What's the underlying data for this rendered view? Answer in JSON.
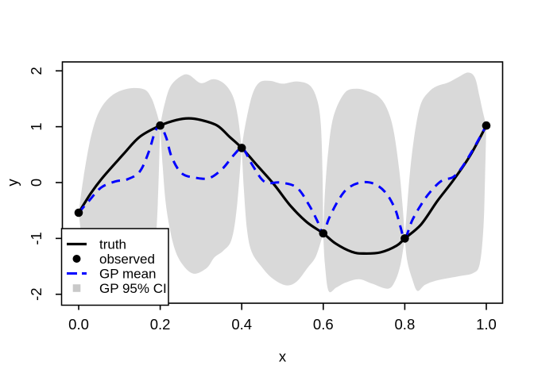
{
  "chart_data": {
    "type": "line",
    "title": "",
    "xlabel": "x",
    "ylabel": "y",
    "xlim": [
      -0.04,
      1.04
    ],
    "ylim": [
      -2.16,
      2.16
    ],
    "x_ticks": [
      0.0,
      0.2,
      0.4,
      0.6,
      0.8,
      1.0
    ],
    "x_tick_labels": [
      "0.0",
      "0.2",
      "0.4",
      "0.6",
      "0.8",
      "1.0"
    ],
    "y_ticks": [
      -2,
      -1,
      0,
      1,
      2
    ],
    "y_tick_labels": [
      "-2",
      "-1",
      "0",
      "1",
      "2"
    ],
    "grid": false,
    "legend_position": "bottomleft",
    "colors": {
      "truth": "#000000",
      "observed": "#000000",
      "gp_mean": "#0000FF",
      "ci_band": "#D9D9D9",
      "legend_square": "#C9C9C9",
      "axis": "#000000",
      "legend_bg": "#FFFFFF",
      "background": "#FFFFFF"
    },
    "observed": {
      "x": [
        0.0,
        0.2,
        0.4,
        0.6,
        0.8,
        1.0
      ],
      "y": [
        -0.54,
        1.02,
        0.62,
        -0.91,
        -1.0,
        1.02
      ]
    },
    "series": [
      {
        "name": "truth",
        "style": "solid",
        "points": [
          [
            0.0,
            -0.54
          ],
          [
            0.03,
            -0.19
          ],
          [
            0.06,
            0.1
          ],
          [
            0.11,
            0.51
          ],
          [
            0.15,
            0.82
          ],
          [
            0.2,
            1.02
          ],
          [
            0.24,
            1.12
          ],
          [
            0.27,
            1.15
          ],
          [
            0.3,
            1.12
          ],
          [
            0.34,
            1.02
          ],
          [
            0.37,
            0.82
          ],
          [
            0.4,
            0.62
          ],
          [
            0.44,
            0.29
          ],
          [
            0.48,
            -0.04
          ],
          [
            0.52,
            -0.42
          ],
          [
            0.56,
            -0.71
          ],
          [
            0.6,
            -0.91
          ],
          [
            0.63,
            -1.09
          ],
          [
            0.67,
            -1.24
          ],
          [
            0.7,
            -1.27
          ],
          [
            0.74,
            -1.25
          ],
          [
            0.78,
            -1.13
          ],
          [
            0.8,
            -1.0
          ],
          [
            0.84,
            -0.75
          ],
          [
            0.88,
            -0.33
          ],
          [
            0.92,
            0.05
          ],
          [
            0.96,
            0.48
          ],
          [
            1.0,
            1.02
          ]
        ]
      },
      {
        "name": "GP mean",
        "style": "dashed",
        "points": [
          [
            0.0,
            -0.54
          ],
          [
            0.025,
            -0.33
          ],
          [
            0.055,
            -0.09
          ],
          [
            0.09,
            0.02
          ],
          [
            0.12,
            0.06
          ],
          [
            0.15,
            0.2
          ],
          [
            0.172,
            0.55
          ],
          [
            0.187,
            0.9
          ],
          [
            0.2,
            1.02
          ],
          [
            0.215,
            0.8
          ],
          [
            0.228,
            0.46
          ],
          [
            0.252,
            0.17
          ],
          [
            0.284,
            0.09
          ],
          [
            0.32,
            0.08
          ],
          [
            0.353,
            0.25
          ],
          [
            0.379,
            0.48
          ],
          [
            0.4,
            0.62
          ],
          [
            0.414,
            0.48
          ],
          [
            0.428,
            0.29
          ],
          [
            0.457,
            0.01
          ],
          [
            0.496,
            0.0
          ],
          [
            0.535,
            -0.09
          ],
          [
            0.565,
            -0.4
          ],
          [
            0.585,
            -0.68
          ],
          [
            0.6,
            -0.91
          ],
          [
            0.613,
            -0.66
          ],
          [
            0.636,
            -0.33
          ],
          [
            0.659,
            -0.11
          ],
          [
            0.691,
            0.0
          ],
          [
            0.724,
            -0.02
          ],
          [
            0.753,
            -0.18
          ],
          [
            0.776,
            -0.47
          ],
          [
            0.789,
            -0.78
          ],
          [
            0.8,
            -1.0
          ],
          [
            0.818,
            -0.68
          ],
          [
            0.838,
            -0.42
          ],
          [
            0.861,
            -0.18
          ],
          [
            0.89,
            0.03
          ],
          [
            0.919,
            0.1
          ],
          [
            0.942,
            0.29
          ],
          [
            0.968,
            0.6
          ],
          [
            1.0,
            1.02
          ]
        ]
      }
    ],
    "ci_blobs": [
      {
        "upper": [
          [
            0.0,
            -0.54
          ],
          [
            0.012,
            0.1
          ],
          [
            0.03,
            0.82
          ],
          [
            0.05,
            1.27
          ],
          [
            0.08,
            1.55
          ],
          [
            0.12,
            1.68
          ],
          [
            0.16,
            1.67
          ],
          [
            0.178,
            1.52
          ],
          [
            0.19,
            1.28
          ],
          [
            0.2,
            1.02
          ]
        ],
        "lower": [
          [
            0.0,
            -0.54
          ],
          [
            0.012,
            -1.2
          ],
          [
            0.03,
            -1.62
          ],
          [
            0.06,
            -1.87
          ],
          [
            0.1,
            -1.96
          ],
          [
            0.14,
            -1.97
          ],
          [
            0.168,
            -1.83
          ],
          [
            0.185,
            -1.35
          ],
          [
            0.194,
            -0.4
          ],
          [
            0.2,
            1.02
          ]
        ]
      },
      {
        "upper": [
          [
            0.2,
            1.02
          ],
          [
            0.21,
            1.38
          ],
          [
            0.225,
            1.72
          ],
          [
            0.25,
            1.9
          ],
          [
            0.27,
            1.93
          ],
          [
            0.3,
            1.78
          ],
          [
            0.33,
            1.85
          ],
          [
            0.357,
            1.77
          ],
          [
            0.378,
            1.55
          ],
          [
            0.39,
            1.2
          ],
          [
            0.4,
            0.62
          ]
        ],
        "lower": [
          [
            0.2,
            1.02
          ],
          [
            0.206,
            0.3
          ],
          [
            0.215,
            -0.45
          ],
          [
            0.232,
            -1.1
          ],
          [
            0.252,
            -1.44
          ],
          [
            0.281,
            -1.63
          ],
          [
            0.314,
            -1.53
          ],
          [
            0.333,
            -1.34
          ],
          [
            0.355,
            -1.22
          ],
          [
            0.375,
            -1.02
          ],
          [
            0.388,
            -0.45
          ],
          [
            0.4,
            0.62
          ]
        ]
      },
      {
        "upper": [
          [
            0.4,
            0.62
          ],
          [
            0.408,
            1.0
          ],
          [
            0.425,
            1.55
          ],
          [
            0.443,
            1.79
          ],
          [
            0.47,
            1.82
          ],
          [
            0.5,
            1.77
          ],
          [
            0.535,
            1.81
          ],
          [
            0.567,
            1.74
          ],
          [
            0.585,
            1.48
          ],
          [
            0.594,
            1.05
          ],
          [
            0.598,
            0.2
          ],
          [
            0.6,
            -0.91
          ]
        ],
        "lower": [
          [
            0.4,
            0.62
          ],
          [
            0.405,
            -0.1
          ],
          [
            0.413,
            -0.85
          ],
          [
            0.425,
            -1.25
          ],
          [
            0.45,
            -1.52
          ],
          [
            0.476,
            -1.72
          ],
          [
            0.509,
            -1.84
          ],
          [
            0.535,
            -1.77
          ],
          [
            0.561,
            -1.53
          ],
          [
            0.582,
            -1.32
          ],
          [
            0.6,
            -0.91
          ]
        ]
      },
      {
        "upper": [
          [
            0.6,
            -0.91
          ],
          [
            0.604,
            -0.2
          ],
          [
            0.612,
            0.55
          ],
          [
            0.625,
            1.18
          ],
          [
            0.652,
            1.6
          ],
          [
            0.681,
            1.68
          ],
          [
            0.711,
            1.63
          ],
          [
            0.737,
            1.53
          ],
          [
            0.756,
            1.33
          ],
          [
            0.772,
            0.95
          ],
          [
            0.786,
            0.25
          ],
          [
            0.795,
            -0.45
          ],
          [
            0.8,
            -1.0
          ]
        ],
        "lower": [
          [
            0.6,
            -0.91
          ],
          [
            0.604,
            -1.45
          ],
          [
            0.613,
            -1.94
          ],
          [
            0.632,
            -1.88
          ],
          [
            0.655,
            -1.79
          ],
          [
            0.688,
            -1.73
          ],
          [
            0.72,
            -1.81
          ],
          [
            0.759,
            -1.9
          ],
          [
            0.777,
            -1.75
          ],
          [
            0.79,
            -1.45
          ],
          [
            0.8,
            -1.0
          ]
        ]
      },
      {
        "upper": [
          [
            0.8,
            -1.0
          ],
          [
            0.806,
            -0.4
          ],
          [
            0.815,
            0.35
          ],
          [
            0.827,
            1.0
          ],
          [
            0.84,
            1.42
          ],
          [
            0.86,
            1.63
          ],
          [
            0.88,
            1.73
          ],
          [
            0.906,
            1.79
          ],
          [
            0.932,
            1.89
          ],
          [
            0.955,
            1.97
          ],
          [
            0.972,
            1.88
          ],
          [
            0.983,
            1.55
          ],
          [
            0.992,
            1.25
          ],
          [
            1.0,
            1.02
          ]
        ],
        "lower": [
          [
            0.8,
            -1.0
          ],
          [
            0.806,
            -1.4
          ],
          [
            0.818,
            -1.72
          ],
          [
            0.831,
            -1.94
          ],
          [
            0.85,
            -1.83
          ],
          [
            0.88,
            -1.75
          ],
          [
            0.93,
            -1.68
          ],
          [
            0.968,
            -1.62
          ],
          [
            0.984,
            -1.45
          ],
          [
            0.993,
            -0.8
          ],
          [
            0.997,
            0.1
          ],
          [
            1.0,
            1.02
          ]
        ]
      }
    ],
    "legend": {
      "items": [
        {
          "label": "truth",
          "marker": "solid-line",
          "color": "#000000"
        },
        {
          "label": "observed",
          "marker": "point",
          "color": "#000000"
        },
        {
          "label": "GP mean",
          "marker": "dashed-line",
          "color": "#0000FF"
        },
        {
          "label": "GP 95% CI",
          "marker": "filled-square",
          "color": "#C9C9C9"
        }
      ]
    }
  }
}
